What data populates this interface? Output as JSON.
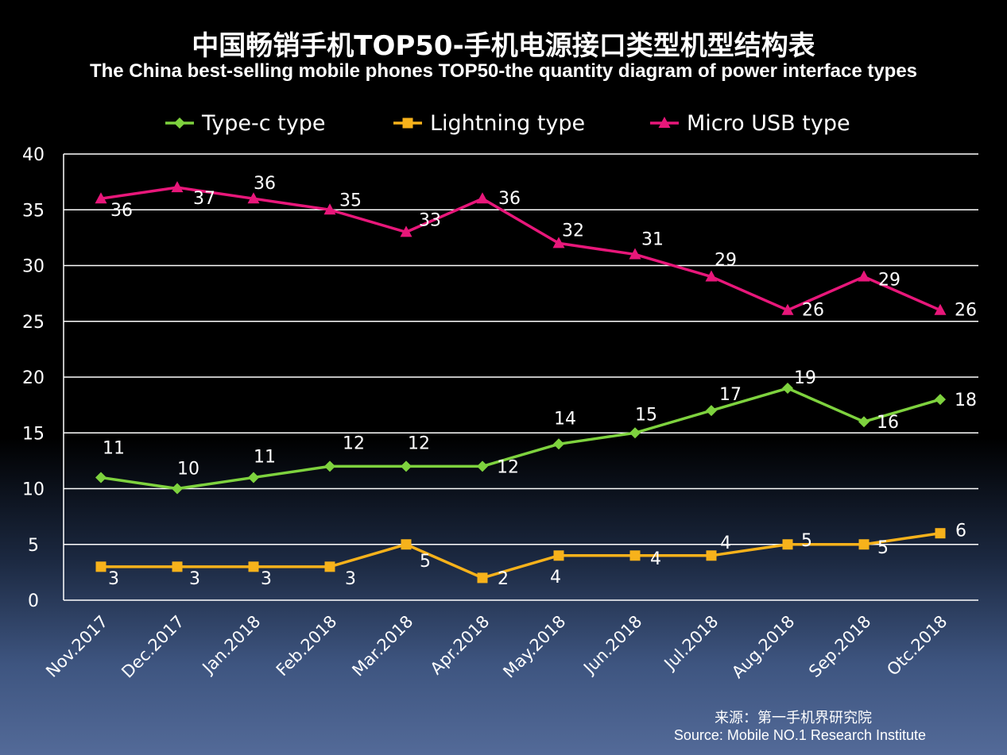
{
  "chart_data": {
    "type": "line",
    "title": "中国畅销手机TOP50-手机电源接口类型机型结构表",
    "subtitle": "The China best-selling mobile phones TOP50-the quantity diagram of power interface types",
    "categories": [
      "Nov.2017",
      "Dec.2017",
      "Jan.2018",
      "Feb.2018",
      "Mar.2018",
      "Apr.2018",
      "May.2018",
      "Jun.2018",
      "Jul.2018",
      "Aug.2018",
      "Sep.2018",
      "Otc.2018"
    ],
    "series": [
      {
        "name": "Type-c type",
        "color": "#7ed23e",
        "marker": "diamond",
        "values": [
          11,
          10,
          11,
          12,
          12,
          12,
          14,
          15,
          17,
          19,
          16,
          18
        ]
      },
      {
        "name": "Lightning type",
        "color": "#f7b21b",
        "marker": "square",
        "values": [
          3,
          3,
          3,
          3,
          5,
          2,
          4,
          4,
          4,
          5,
          5,
          6
        ]
      },
      {
        "name": "Micro USB type",
        "color": "#e8177a",
        "marker": "triangle",
        "values": [
          36,
          37,
          36,
          35,
          33,
          36,
          32,
          31,
          29,
          26,
          29,
          26
        ]
      }
    ],
    "yticks": [
      "0",
      "5",
      "10",
      "15",
      "20",
      "25",
      "30",
      "35",
      "40"
    ],
    "ylim": [
      0,
      40
    ],
    "grid": true,
    "legend": "top-center",
    "xlabel": "",
    "ylabel": ""
  },
  "source": {
    "cn": "来源：第一手机界研究院",
    "en": "Source: Mobile NO.1 Research Institute"
  }
}
